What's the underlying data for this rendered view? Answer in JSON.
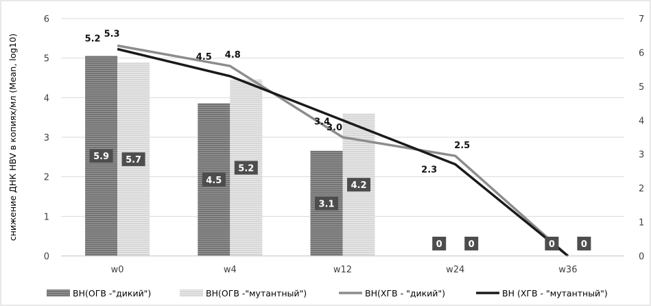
{
  "chart_data": {
    "type": "bar",
    "categories": [
      "w0",
      "w4",
      "w12",
      "w24",
      "w36"
    ],
    "ylabel": "снижение ДНК HBV в копиях/мл (Mean, log10)",
    "ylim": [
      0,
      6
    ],
    "y2lim": [
      0,
      7
    ],
    "yticks": [
      "0",
      "1",
      "2",
      "3",
      "4",
      "5",
      "6"
    ],
    "y2ticks": [
      "0",
      "1",
      "2",
      "3",
      "4",
      "5",
      "6",
      "7"
    ],
    "grid": true,
    "legend_position": "bottom",
    "series": [
      {
        "name": "ВН(ОГВ -\"дикий\")",
        "type": "bar",
        "axis": "secondary",
        "values": [
          5.9,
          4.5,
          3.1,
          0,
          0
        ],
        "labels": [
          "5.9",
          "4.5",
          "3.1",
          "0",
          "0"
        ],
        "color": "#7f7f7f"
      },
      {
        "name": "ВН(ОГВ -\"мутантный\")",
        "type": "bar",
        "axis": "secondary",
        "values": [
          5.7,
          5.2,
          4.2,
          0,
          0
        ],
        "labels": [
          "5.7",
          "5.2",
          "4.2",
          "0",
          "0"
        ],
        "color": "#c9c9c9"
      },
      {
        "name": "ВН(ХГВ - \"дикий\")",
        "type": "line",
        "axis": "secondary",
        "values": [
          6.2,
          5.6,
          3.5,
          2.95,
          0
        ],
        "labels": [
          "5.3",
          "4.8",
          "3.0",
          "2.5",
          ""
        ],
        "color": "#8c8c8c"
      },
      {
        "name": "ВН (ХГВ - \"мутантный\")",
        "type": "line",
        "axis": "secondary",
        "values": [
          6.1,
          5.3,
          4.0,
          2.7,
          0
        ],
        "labels": [
          "5.2",
          "4.5",
          "3.4",
          "2.3",
          ""
        ],
        "color": "#1a1a1a"
      }
    ]
  }
}
